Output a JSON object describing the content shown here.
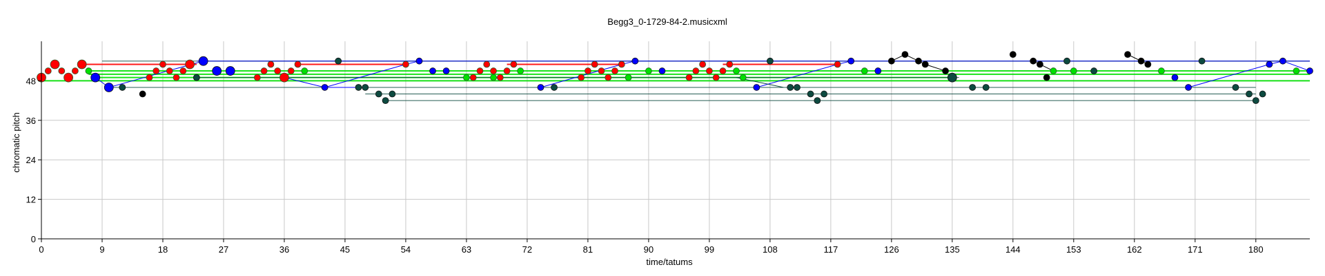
{
  "chart_data": {
    "type": "scatter",
    "title": "Begg3_0-1729-84-2.musicxml",
    "xlabel": "time/tatums",
    "ylabel": "chromatic pitch",
    "xlim": [
      0,
      188
    ],
    "ylim": [
      0,
      60
    ],
    "xticks": [
      0,
      9,
      18,
      27,
      36,
      45,
      54,
      63,
      72,
      81,
      90,
      99,
      108,
      117,
      126,
      135,
      144,
      153,
      162,
      171,
      180
    ],
    "yticks": [
      0,
      12,
      24,
      36,
      48
    ],
    "grid": true,
    "colors": {
      "red": "#ff0000",
      "green": "#00e000",
      "blue": "#0000ff",
      "teal": "#0d4a40",
      "black": "#000000",
      "grid": "#c8c8c8"
    },
    "sustain_lines": [
      {
        "color": "red",
        "x0": 6,
        "x1": 23,
        "y": 53
      },
      {
        "color": "red",
        "x0": 38,
        "x1": 54,
        "y": 53
      },
      {
        "color": "red",
        "x0": 69,
        "x1": 86,
        "y": 53
      },
      {
        "color": "red",
        "x0": 101,
        "x1": 118,
        "y": 53
      },
      {
        "color": "green",
        "x0": 7,
        "x1": 188,
        "y": 51
      },
      {
        "color": "green",
        "x0": 7,
        "x1": 188,
        "y": 50
      },
      {
        "color": "green",
        "x0": 8,
        "x1": 135,
        "y": 49
      },
      {
        "color": "green",
        "x0": 0,
        "x1": 188,
        "y": 48
      },
      {
        "color": "teal",
        "x0": 9,
        "x1": 188,
        "y": 54
      },
      {
        "color": "teal",
        "x0": 24,
        "x1": 188,
        "y": 54
      },
      {
        "color": "teal",
        "x0": 23,
        "x1": 136,
        "y": 49
      },
      {
        "color": "teal",
        "x0": 10,
        "x1": 180,
        "y": 46
      },
      {
        "color": "teal",
        "x0": 48,
        "x1": 180,
        "y": 44
      },
      {
        "color": "teal",
        "x0": 51,
        "x1": 180,
        "y": 42
      },
      {
        "color": "blue",
        "x0": 23,
        "x1": 188,
        "y": 54
      }
    ],
    "segments": [
      {
        "color": "blue",
        "points": [
          [
            8,
            49
          ],
          [
            10,
            46
          ],
          [
            24,
            54
          ]
        ]
      },
      {
        "color": "blue",
        "points": [
          [
            42,
            46
          ],
          [
            54,
            53
          ],
          [
            56,
            54
          ]
        ]
      },
      {
        "color": "blue",
        "points": [
          [
            74,
            46
          ],
          [
            86,
            53
          ],
          [
            88,
            54
          ]
        ]
      },
      {
        "color": "blue",
        "points": [
          [
            106,
            46
          ],
          [
            118,
            53
          ],
          [
            120,
            54
          ]
        ]
      },
      {
        "color": "blue",
        "points": [
          [
            170,
            46
          ],
          [
            182,
            53
          ],
          [
            184,
            54
          ],
          [
            188,
            51
          ]
        ]
      },
      {
        "color": "blue",
        "points": [
          [
            36,
            49
          ],
          [
            42,
            46
          ],
          [
            47,
            46
          ]
        ]
      },
      {
        "color": "black",
        "points": [
          [
            126,
            54
          ],
          [
            128,
            56
          ],
          [
            130,
            54
          ],
          [
            131,
            53
          ],
          [
            134,
            51
          ]
        ]
      },
      {
        "color": "black",
        "points": [
          [
            147,
            54
          ],
          [
            148,
            53
          ],
          [
            150,
            51
          ]
        ]
      },
      {
        "color": "black",
        "points": [
          [
            161,
            56
          ],
          [
            163,
            54
          ],
          [
            164,
            53
          ]
        ]
      },
      {
        "color": "teal",
        "points": [
          [
            103,
            49
          ],
          [
            110,
            46
          ]
        ]
      }
    ],
    "series": [
      {
        "name": "",
        "color": "red",
        "points": [
          [
            0,
            49
          ],
          [
            1,
            51
          ],
          [
            2,
            53
          ],
          [
            3,
            51
          ],
          [
            4,
            49
          ],
          [
            5,
            51
          ],
          [
            6,
            53
          ],
          [
            16,
            49
          ],
          [
            17,
            51
          ],
          [
            18,
            53
          ],
          [
            19,
            51
          ],
          [
            20,
            49
          ],
          [
            21,
            51
          ],
          [
            22,
            53
          ],
          [
            32,
            49
          ],
          [
            33,
            51
          ],
          [
            34,
            53
          ],
          [
            35,
            51
          ],
          [
            36,
            49
          ],
          [
            37,
            51
          ],
          [
            38,
            53
          ],
          [
            54,
            53
          ],
          [
            64,
            49
          ],
          [
            65,
            51
          ],
          [
            66,
            53
          ],
          [
            67,
            51
          ],
          [
            68,
            49
          ],
          [
            69,
            51
          ],
          [
            70,
            53
          ],
          [
            80,
            49
          ],
          [
            81,
            51
          ],
          [
            82,
            53
          ],
          [
            83,
            51
          ],
          [
            84,
            49
          ],
          [
            85,
            51
          ],
          [
            86,
            53
          ],
          [
            96,
            49
          ],
          [
            97,
            51
          ],
          [
            98,
            53
          ],
          [
            99,
            51
          ],
          [
            100,
            49
          ],
          [
            101,
            51
          ],
          [
            102,
            53
          ],
          [
            118,
            53
          ]
        ]
      },
      {
        "name": "",
        "color": "green",
        "points": [
          [
            7,
            51
          ],
          [
            23,
            49
          ],
          [
            39,
            51
          ],
          [
            63,
            49
          ],
          [
            67,
            49
          ],
          [
            71,
            51
          ],
          [
            87,
            49
          ],
          [
            90,
            51
          ],
          [
            103,
            51
          ],
          [
            104,
            49
          ],
          [
            122,
            51
          ],
          [
            150,
            51
          ],
          [
            153,
            51
          ],
          [
            166,
            51
          ],
          [
            186,
            51
          ]
        ]
      },
      {
        "name": "",
        "color": "blue",
        "points": [
          [
            8,
            49
          ],
          [
            10,
            46
          ],
          [
            24,
            54
          ],
          [
            26,
            51
          ],
          [
            28,
            51
          ],
          [
            42,
            46
          ],
          [
            56,
            54
          ],
          [
            58,
            51
          ],
          [
            60,
            51
          ],
          [
            74,
            46
          ],
          [
            88,
            54
          ],
          [
            92,
            51
          ],
          [
            106,
            46
          ],
          [
            120,
            54
          ],
          [
            124,
            51
          ],
          [
            168,
            49
          ],
          [
            170,
            46
          ],
          [
            182,
            53
          ],
          [
            184,
            54
          ],
          [
            188,
            51
          ]
        ]
      },
      {
        "name": "",
        "color": "teal",
        "points": [
          [
            12,
            46
          ],
          [
            23,
            49
          ],
          [
            44,
            54
          ],
          [
            47,
            46
          ],
          [
            48,
            46
          ],
          [
            50,
            44
          ],
          [
            51,
            42
          ],
          [
            52,
            44
          ],
          [
            76,
            46
          ],
          [
            108,
            54
          ],
          [
            111,
            46
          ],
          [
            112,
            46
          ],
          [
            114,
            44
          ],
          [
            115,
            42
          ],
          [
            116,
            44
          ],
          [
            135,
            49
          ],
          [
            138,
            46
          ],
          [
            140,
            46
          ],
          [
            152,
            54
          ],
          [
            156,
            51
          ],
          [
            172,
            54
          ],
          [
            177,
            46
          ],
          [
            179,
            44
          ],
          [
            180,
            42
          ],
          [
            181,
            44
          ]
        ]
      },
      {
        "name": "",
        "color": "black",
        "points": [
          [
            15,
            44
          ],
          [
            126,
            54
          ],
          [
            128,
            56
          ],
          [
            130,
            54
          ],
          [
            131,
            53
          ],
          [
            134,
            51
          ],
          [
            144,
            56
          ],
          [
            147,
            54
          ],
          [
            148,
            53
          ],
          [
            149,
            49
          ],
          [
            161,
            56
          ],
          [
            163,
            54
          ],
          [
            164,
            53
          ]
        ]
      }
    ],
    "large_points": [
      [
        0,
        49
      ],
      [
        2,
        53
      ],
      [
        4,
        49
      ],
      [
        6,
        53
      ],
      [
        8,
        49
      ],
      [
        10,
        46
      ],
      [
        22,
        53
      ],
      [
        24,
        54
      ],
      [
        26,
        51
      ],
      [
        28,
        51
      ],
      [
        36,
        49
      ],
      [
        40,
        49
      ],
      [
        72,
        49
      ],
      [
        135,
        49
      ]
    ]
  }
}
